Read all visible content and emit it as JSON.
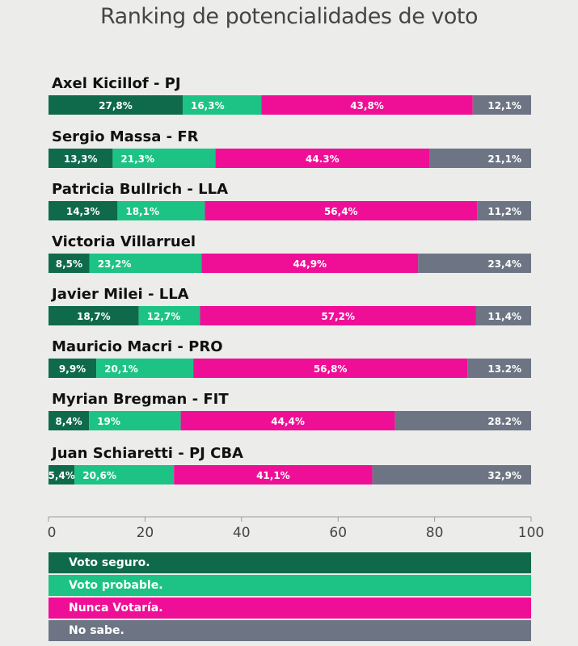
{
  "chart_data": {
    "type": "bar",
    "orientation": "horizontal",
    "stacked": true,
    "title": "Ranking de potencialidades de voto",
    "xlim": [
      0,
      100
    ],
    "xticks": [
      "0",
      "20",
      "40",
      "60",
      "80",
      "100"
    ],
    "grid": false,
    "legend_position": "bottom",
    "categories": [
      "Axel Kicillof - PJ",
      "Sergio Massa - FR",
      "Patricia Bullrich - LLA",
      "Victoria Villarruel",
      "Javier Milei - LLA",
      "Mauricio Macri - PRO",
      "Myrian Bregman - FIT",
      "Juan Schiaretti - PJ CBA"
    ],
    "series": [
      {
        "name": "Voto seguro.",
        "color": "#0f6a4c",
        "values": [
          27.8,
          13.3,
          14.3,
          8.5,
          18.7,
          9.9,
          8.4,
          5.4
        ],
        "labels": [
          "27,8%",
          "13,3%",
          "14,3%",
          "8,5%",
          "18,7%",
          "9,9%",
          "8,4%",
          "5,4%"
        ]
      },
      {
        "name": "Voto probable.",
        "color": "#1dc385",
        "values": [
          16.3,
          21.3,
          18.1,
          23.2,
          12.7,
          20.1,
          19,
          20.6
        ],
        "labels": [
          "16,3%",
          "21,3%",
          "18,1%",
          "23,2%",
          "12,7%",
          "20,1%",
          "19%",
          "20,6%"
        ]
      },
      {
        "name": "Nunca Votaría.",
        "color": "#ef0f96",
        "values": [
          43.8,
          44.3,
          56.4,
          44.9,
          57.2,
          56.8,
          44.4,
          41.1
        ],
        "labels": [
          "43,8%",
          "44.3%",
          "56,4%",
          "44,9%",
          "57,2%",
          "56,8%",
          "44,4%",
          "41,1%"
        ]
      },
      {
        "name": "No sabe.",
        "color": "#6d7584",
        "values": [
          12.1,
          21.1,
          11.2,
          23.4,
          11.4,
          13.2,
          28.2,
          32.9
        ],
        "labels": [
          "12,1%",
          "21,1%",
          "11,2%",
          "23,4%",
          "11,4%",
          "13.2%",
          "28.2%",
          "32,9%"
        ]
      }
    ]
  }
}
